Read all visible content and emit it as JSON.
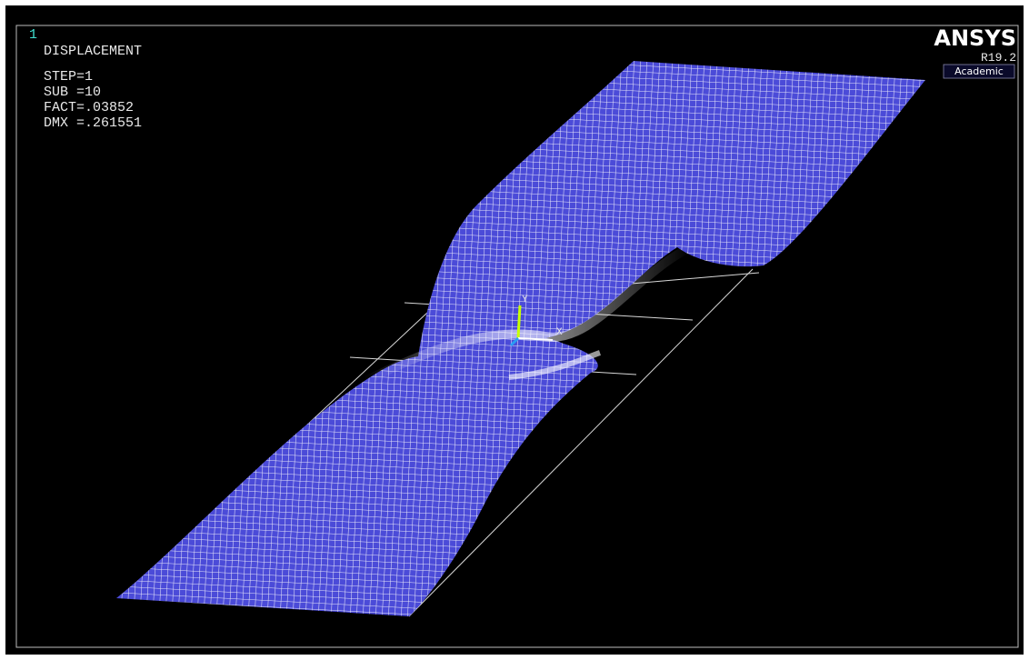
{
  "window_number": "1",
  "legend": {
    "title": "DISPLACEMENT",
    "lines": [
      "STEP=1",
      "SUB =10",
      "FACT=.03852",
      "DMX =.261551"
    ]
  },
  "logo": {
    "name": "ANSYS",
    "version": "R19.2",
    "license": "Academic"
  },
  "triad": {
    "y": "Y",
    "x": "X"
  }
}
